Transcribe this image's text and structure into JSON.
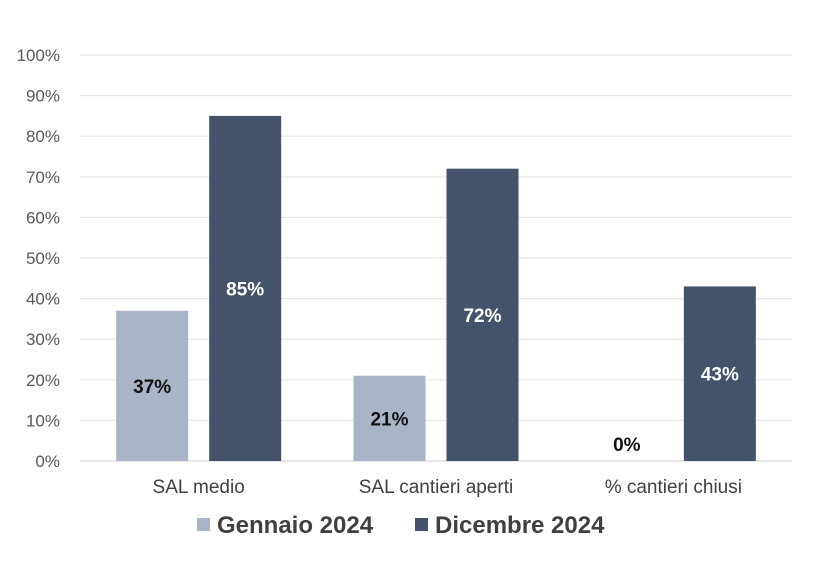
{
  "chart_data": {
    "type": "bar",
    "title": "",
    "xlabel": "",
    "ylabel": "",
    "ylim": [
      0,
      100
    ],
    "y_ticks": [
      0,
      10,
      20,
      30,
      40,
      50,
      60,
      70,
      80,
      90,
      100
    ],
    "y_tick_format": "%",
    "grid": true,
    "legend_position": "bottom",
    "categories": [
      "SAL medio",
      "SAL cantieri aperti",
      "% cantieri chiusi"
    ],
    "series": [
      {
        "name": "Gennaio 2024",
        "color": "#a9b5c6",
        "label_color": "#111111",
        "values": [
          37,
          21,
          0
        ],
        "data_labels": [
          "37%",
          "21%",
          "0%"
        ]
      },
      {
        "name": "Dicembre 2024",
        "color": "#44536a",
        "label_color": "#ffffff",
        "values": [
          85,
          72,
          43
        ],
        "data_labels": [
          "85%",
          "72%",
          "43%"
        ]
      }
    ]
  }
}
